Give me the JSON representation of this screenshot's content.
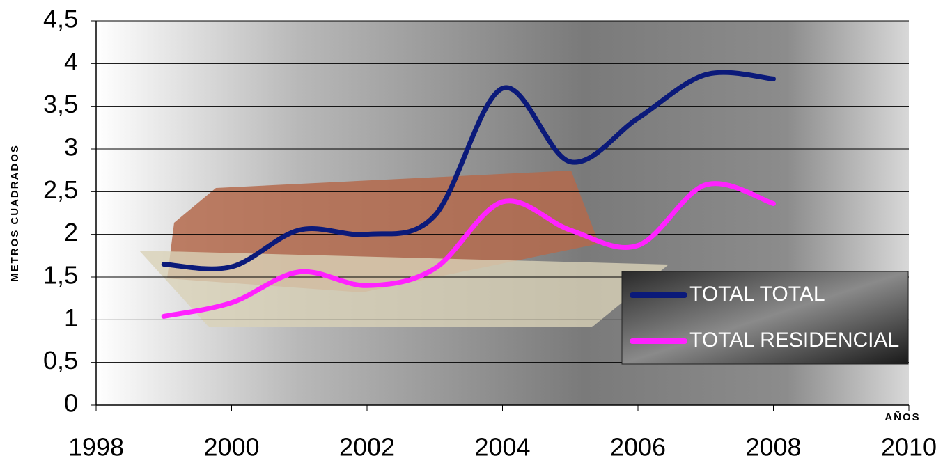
{
  "chart_data": {
    "type": "line",
    "x": [
      1999,
      2000,
      2001,
      2002,
      2003,
      2004,
      2005,
      2006,
      2007,
      2008
    ],
    "series": [
      {
        "name": "TOTAL TOTAL",
        "color": "#0b1a7a",
        "values": [
          1.65,
          1.62,
          2.05,
          2.0,
          2.22,
          3.71,
          2.85,
          3.36,
          3.87,
          3.82
        ]
      },
      {
        "name": "TOTAL RESIDENCIAL",
        "color": "#ff22ff",
        "values": [
          1.04,
          1.2,
          1.56,
          1.4,
          1.6,
          2.38,
          2.05,
          1.87,
          2.58,
          2.36
        ]
      }
    ],
    "xlim": [
      1998,
      2010
    ],
    "xticks": [
      1998,
      2000,
      2002,
      2004,
      2006,
      2008,
      2010
    ],
    "ylim": [
      0,
      4.5
    ],
    "yticks": [
      0,
      {
        "value": 0.5,
        "label": "0,5"
      },
      1,
      {
        "value": 1.5,
        "label": "1,5"
      },
      2,
      {
        "value": 2.5,
        "label": "2,5"
      },
      3,
      {
        "value": 3.5,
        "label": "3,5"
      },
      4,
      {
        "value": 4.5,
        "label": "4,5"
      }
    ],
    "ylabel": "METROS CUADRADOS",
    "xlabel": "AÑOS",
    "grid": true,
    "legend": "lower right"
  }
}
